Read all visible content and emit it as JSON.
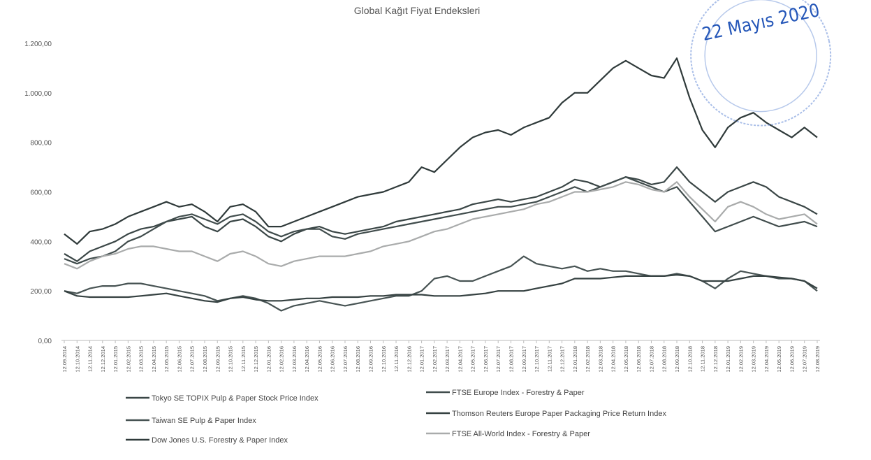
{
  "chart_data": {
    "type": "line",
    "title": "Global Kağıt Fiyat Endeksleri",
    "annotations": [
      "22 Mayıs 2020"
    ],
    "categories": [
      "12.09.2014",
      "12.10.2014",
      "12.11.2014",
      "12.12.2014",
      "12.01.2015",
      "12.02.2015",
      "12.03.2015",
      "12.04.2015",
      "12.05.2015",
      "12.06.2015",
      "12.07.2015",
      "12.08.2015",
      "12.09.2015",
      "12.10.2015",
      "12.11.2015",
      "12.12.2015",
      "12.01.2016",
      "12.02.2016",
      "12.03.2016",
      "12.04.2016",
      "12.05.2016",
      "12.06.2016",
      "12.07.2016",
      "12.08.2016",
      "12.09.2016",
      "12.10.2016",
      "12.11.2016",
      "12.12.2016",
      "12.01.2017",
      "12.02.2017",
      "12.03.2017",
      "12.04.2017",
      "12.05.2017",
      "12.06.2017",
      "12.07.2017",
      "12.08.2017",
      "12.09.2017",
      "12.10.2017",
      "12.11.2017",
      "12.12.2017",
      "12.01.2018",
      "12.02.2018",
      "12.03.2018",
      "12.04.2018",
      "12.05.2018",
      "12.06.2018",
      "12.07.2018",
      "12.08.2018",
      "12.09.2018",
      "12.10.2018",
      "12.11.2018",
      "12.12.2018",
      "12.01.2019",
      "12.02.2019",
      "12.03.2019",
      "12.04.2019",
      "12.05.2019",
      "12.06.2019",
      "12.07.2019",
      "12.08.2019"
    ],
    "ylim": [
      0,
      1200
    ],
    "yticks": [
      {
        "value": 0,
        "label": "0,00"
      },
      {
        "value": 200,
        "label": "200,00"
      },
      {
        "value": 400,
        "label": "400,00"
      },
      {
        "value": 600,
        "label": "600,00"
      },
      {
        "value": 800,
        "label": "800,00"
      },
      {
        "value": 1000,
        "label": "1.000,00"
      },
      {
        "value": 1200,
        "label": "1.200,00"
      }
    ],
    "grid": false,
    "legend": "bottom",
    "series": [
      {
        "name": "Tokyo SE TOPIX Pulp & Paper Stock Price Index",
        "color": "#3a4646",
        "values": [
          350,
          320,
          360,
          380,
          400,
          430,
          450,
          460,
          480,
          490,
          500,
          460,
          440,
          480,
          490,
          460,
          420,
          400,
          430,
          450,
          460,
          440,
          430,
          440,
          450,
          460,
          480,
          490,
          500,
          510,
          520,
          530,
          550,
          560,
          570,
          560,
          570,
          580,
          600,
          620,
          650,
          640,
          620,
          640,
          660,
          650,
          630,
          640,
          700,
          640,
          600,
          560,
          600,
          620,
          640,
          620,
          580,
          560,
          540,
          510
        ]
      },
      {
        "name": "Taiwan SE Pulp & Paper Index",
        "color": "#475353",
        "values": [
          200,
          190,
          210,
          220,
          220,
          230,
          230,
          220,
          210,
          200,
          190,
          180,
          160,
          170,
          180,
          170,
          150,
          120,
          140,
          150,
          160,
          150,
          140,
          150,
          160,
          170,
          180,
          180,
          200,
          250,
          260,
          240,
          240,
          260,
          280,
          300,
          340,
          310,
          300,
          290,
          300,
          280,
          290,
          280,
          280,
          270,
          260,
          260,
          270,
          260,
          240,
          210,
          250,
          280,
          270,
          260,
          250,
          250,
          240,
          200
        ]
      },
      {
        "name": "Dow Jones U.S. Forestry & Paper Index",
        "color": "#2f3a3a",
        "values": [
          430,
          390,
          440,
          450,
          470,
          500,
          520,
          540,
          560,
          540,
          550,
          520,
          480,
          540,
          550,
          520,
          460,
          460,
          480,
          500,
          520,
          540,
          560,
          580,
          590,
          600,
          620,
          640,
          700,
          680,
          730,
          780,
          820,
          840,
          850,
          830,
          860,
          880,
          900,
          960,
          1000,
          1000,
          1050,
          1100,
          1130,
          1100,
          1070,
          1060,
          1140,
          980,
          850,
          780,
          860,
          900,
          920,
          880,
          850,
          820,
          860,
          820
        ]
      },
      {
        "name": "FTSE Europe Index - Forestry & Paper",
        "color": "#404c4c",
        "values": [
          330,
          310,
          330,
          340,
          360,
          400,
          420,
          450,
          480,
          500,
          510,
          490,
          470,
          500,
          510,
          480,
          440,
          420,
          440,
          450,
          450,
          420,
          410,
          430,
          440,
          450,
          460,
          470,
          480,
          490,
          500,
          510,
          520,
          530,
          540,
          540,
          550,
          560,
          580,
          600,
          620,
          600,
          620,
          640,
          660,
          640,
          620,
          600,
          620,
          560,
          500,
          440,
          460,
          480,
          500,
          480,
          460,
          470,
          480,
          460
        ]
      },
      {
        "name": "Thomson Reuters Europe Paper Packaging Price Return Index",
        "color": "#354141",
        "values": [
          200,
          180,
          175,
          175,
          175,
          175,
          180,
          185,
          190,
          180,
          170,
          160,
          155,
          170,
          175,
          165,
          160,
          160,
          165,
          170,
          170,
          175,
          175,
          175,
          180,
          180,
          185,
          185,
          185,
          180,
          180,
          180,
          185,
          190,
          200,
          200,
          200,
          210,
          220,
          230,
          250,
          250,
          250,
          255,
          260,
          260,
          260,
          260,
          265,
          260,
          240,
          240,
          240,
          250,
          260,
          260,
          255,
          250,
          240,
          210
        ]
      },
      {
        "name": "FTSE All-World Index - Forestry & Paper",
        "color": "#a9abab",
        "values": [
          310,
          290,
          320,
          340,
          350,
          370,
          380,
          380,
          370,
          360,
          360,
          340,
          320,
          350,
          360,
          340,
          310,
          300,
          320,
          330,
          340,
          340,
          340,
          350,
          360,
          380,
          390,
          400,
          420,
          440,
          450,
          470,
          490,
          500,
          510,
          520,
          530,
          550,
          560,
          580,
          600,
          600,
          610,
          620,
          640,
          630,
          610,
          600,
          640,
          580,
          530,
          480,
          540,
          560,
          540,
          510,
          490,
          500,
          510,
          470
        ]
      }
    ]
  }
}
